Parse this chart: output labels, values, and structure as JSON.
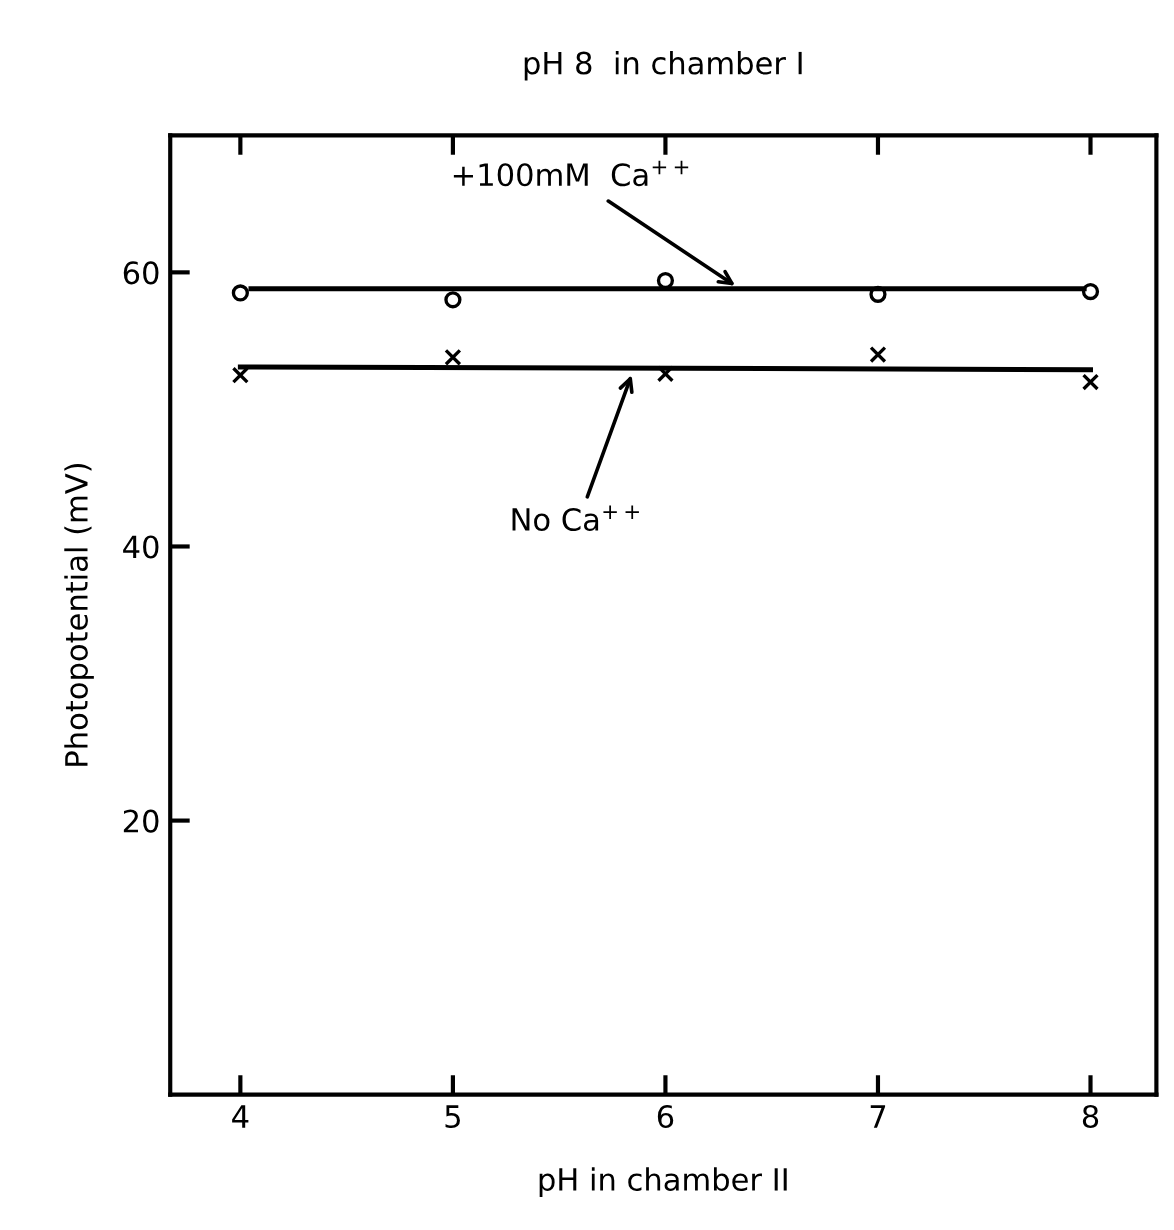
{
  "chart_data": {
    "type": "scatter",
    "title": "pH 8  in chamber I",
    "xlabel": "pH in chamber II",
    "ylabel": "Photopotential (mV)",
    "x": [
      4,
      5,
      6,
      7,
      8
    ],
    "series": [
      {
        "color": "#000000",
        "marker": "circle",
        "values": [
          58.5,
          58.0,
          59.4,
          58.4,
          58.6
        ]
      },
      {
        "color": "#000000",
        "marker": "cross",
        "values": [
          52.5,
          53.8,
          52.6,
          54.0,
          52.0
        ]
      },
      {
        "type": "line",
        "color": "#000000",
        "x": [
          4.05,
          7.97
        ],
        "values": [
          58.8,
          58.8
        ]
      },
      {
        "type": "line",
        "color": "#000000",
        "x": [
          4.0,
          8.0
        ],
        "values": [
          53.1,
          52.9
        ]
      }
    ],
    "annotations": [
      {
        "text": "+100mM  Ca$^{++}$",
        "x": 6.35,
        "y": 58.8
      },
      {
        "text": "No Ca$^{++}$",
        "x": 5.85,
        "y": 52.9
      }
    ],
    "xlim": [
      3.67,
      8.31
    ],
    "ylim": [
      0,
      70
    ],
    "xticks": [
      4,
      5,
      6,
      7,
      8
    ],
    "yticks": [
      20,
      40,
      60
    ],
    "grid": false,
    "legend": false
  }
}
